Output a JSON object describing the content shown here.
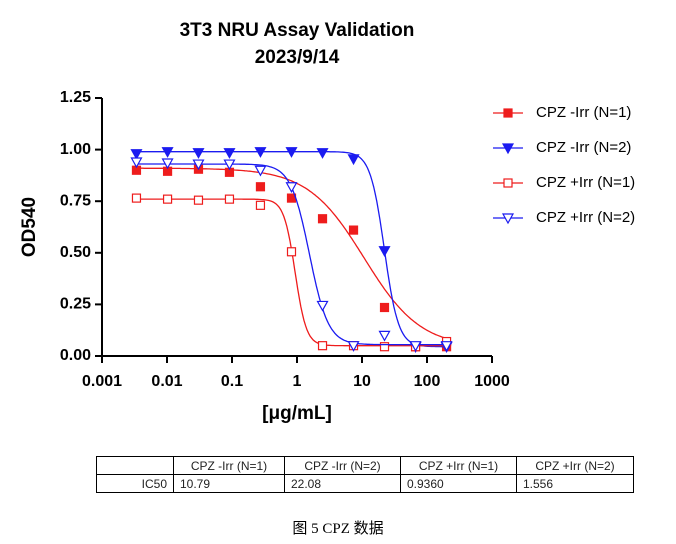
{
  "chart_data": {
    "type": "scatter",
    "title": "3T3 NRU Assay Validation",
    "subtitle": "2023/9/14",
    "x_label": "[μg/mL]",
    "y_label": "OD540",
    "log_x": true,
    "legend": "right",
    "x": [
      0.00339,
      0.0102,
      0.0305,
      0.0914,
      0.274,
      0.823,
      2.47,
      7.41,
      22.2,
      66.7,
      200
    ],
    "xlim": [
      0.001,
      1000
    ],
    "xticks": [
      0.001,
      0.01,
      0.1,
      1,
      10,
      100,
      1000
    ],
    "ylim": [
      0,
      1.25
    ],
    "yticks": [
      {
        "value": 0,
        "label": "0.00"
      },
      {
        "value": 0.25,
        "label": "0.25"
      },
      {
        "value": 0.5,
        "label": "0.50"
      },
      {
        "value": 0.75,
        "label": "0.75"
      },
      {
        "value": 1,
        "label": "1.00"
      },
      {
        "value": 1.25,
        "label": "1.25"
      }
    ],
    "series": [
      {
        "name": "CPZ -Irr (N=1)",
        "color": "#ee1c1c",
        "marker": "square",
        "filled": true,
        "values": [
          0.9,
          0.895,
          0.905,
          0.89,
          0.82,
          0.765,
          0.665,
          0.61,
          0.235,
          0.045,
          0.045
        ],
        "fit": {
          "top": 0.91,
          "bottom": 0.04,
          "ic50": 10.79,
          "hill": 1.0
        }
      },
      {
        "name": "CPZ -Irr (N=2)",
        "color": "#1b1bf0",
        "marker": "triangle-down",
        "filled": true,
        "values": [
          0.98,
          0.99,
          0.985,
          0.985,
          0.99,
          0.99,
          0.985,
          0.955,
          0.51,
          0.045,
          0.045
        ],
        "fit": {
          "top": 0.99,
          "bottom": 0.045,
          "ic50": 22.08,
          "hill": 4
        }
      },
      {
        "name": "CPZ +Irr (N=1)",
        "color": "#ee1c1c",
        "marker": "square",
        "filled": false,
        "values": [
          0.765,
          0.76,
          0.755,
          0.76,
          0.73,
          0.505,
          0.05,
          0.05,
          0.045,
          0.045,
          0.07
        ],
        "fit": {
          "top": 0.76,
          "bottom": 0.05,
          "ic50": 0.936,
          "hill": 5
        }
      },
      {
        "name": "CPZ +Irr (N=2)",
        "color": "#1b1bf0",
        "marker": "triangle-down",
        "filled": false,
        "values": [
          0.94,
          0.935,
          0.93,
          0.93,
          0.9,
          0.82,
          0.245,
          0.05,
          0.1,
          0.05,
          0.05
        ],
        "fit": {
          "top": 0.93,
          "bottom": 0.055,
          "ic50": 1.556,
          "hill": 3
        }
      }
    ]
  },
  "table": {
    "header": [
      "CPZ -Irr (N=1)",
      "CPZ -Irr (N=2)",
      "CPZ +Irr (N=1)",
      "CPZ +Irr (N=2)"
    ],
    "rows": [
      [
        "IC50",
        "10.79",
        "22.08",
        "0.9360",
        "1.556"
      ]
    ]
  },
  "caption": "图 5 CPZ  数据"
}
